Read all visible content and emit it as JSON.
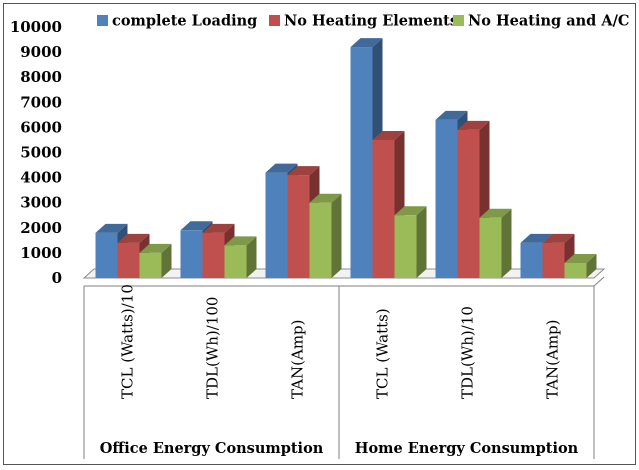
{
  "chart_data": {
    "type": "bar",
    "title": "",
    "xlabel": "",
    "ylabel": "",
    "ylim": [
      0,
      10000
    ],
    "yticks": [
      "0",
      "1000",
      "2000",
      "3000",
      "4000",
      "5000",
      "6000",
      "7000",
      "8000",
      "9000",
      "10000"
    ],
    "categories": [
      "TCL (Watts)/10",
      "TDL(Wh)/100",
      "TAN(Amp)",
      "TCL (Watts)",
      "TDL(Wh)/10",
      "TAN(Amp)"
    ],
    "groups": [
      {
        "label": "Office Energy Consumption",
        "span": 3
      },
      {
        "label": "Home Energy Consumption",
        "span": 3
      }
    ],
    "series": [
      {
        "name": "complete Loading",
        "color": "#4F81BD",
        "values": [
          1800,
          1900,
          4200,
          9200,
          6300,
          1400
        ]
      },
      {
        "name": "No Heating Elements",
        "color": "#C0504D",
        "values": [
          1400,
          1800,
          4100,
          5500,
          5900,
          1400
        ]
      },
      {
        "name": "No Heating and A/C",
        "color": "#9BBB59",
        "values": [
          1000,
          1300,
          3000,
          2500,
          2400,
          600
        ]
      }
    ],
    "legend_position": "top",
    "grid": false,
    "style": "3d-clustered-column"
  }
}
